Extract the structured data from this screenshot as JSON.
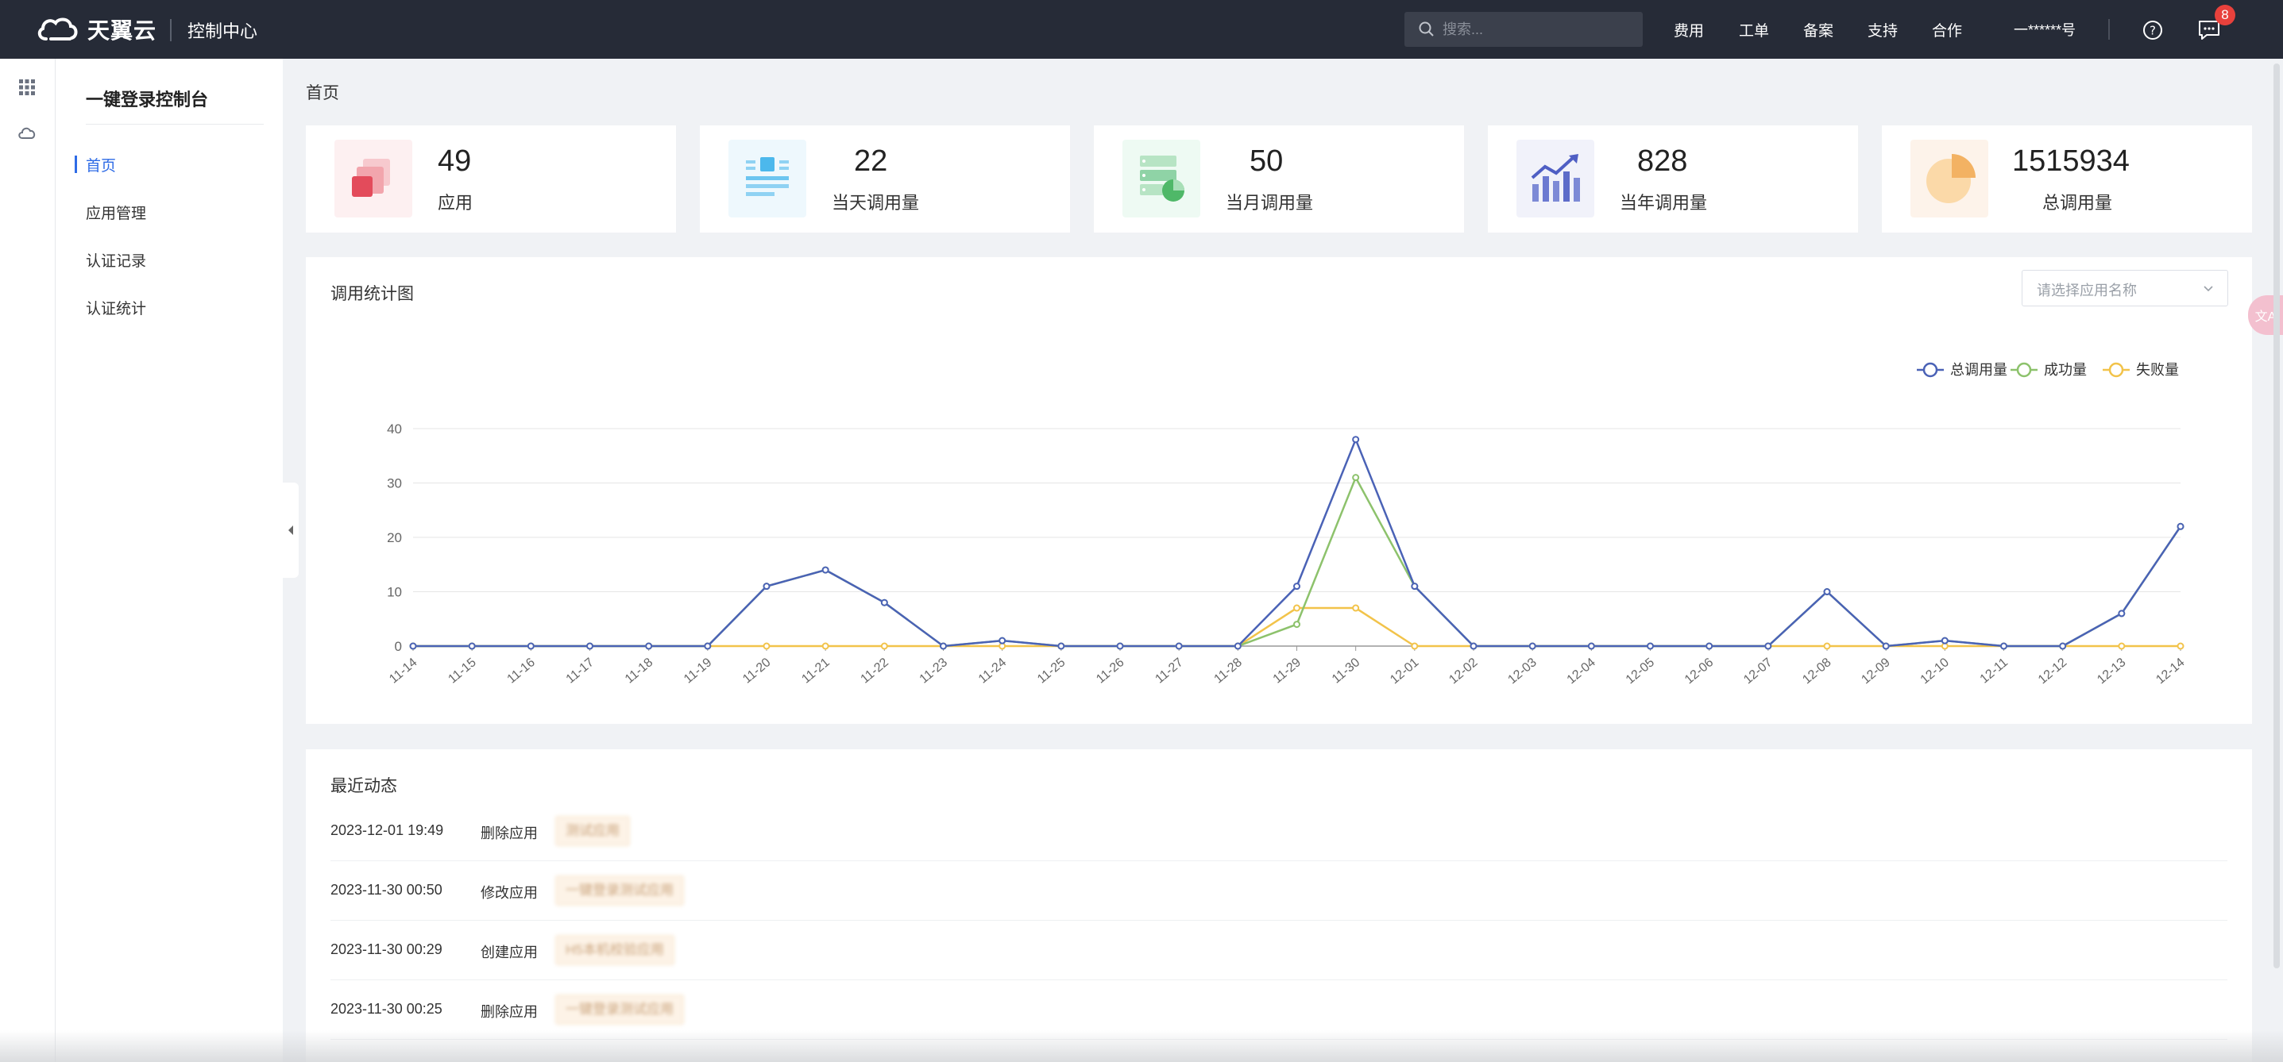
{
  "header": {
    "brand": "天翼云",
    "console_title": "控制中心",
    "search_placeholder": "搜索...",
    "nav": [
      "费用",
      "工单",
      "备案",
      "支持",
      "合作"
    ],
    "account": "一******号",
    "message_count": "8"
  },
  "sidebar": {
    "title": "一键登录控制台",
    "items": [
      {
        "label": "首页",
        "active": true
      },
      {
        "label": "应用管理",
        "active": false
      },
      {
        "label": "认证记录",
        "active": false
      },
      {
        "label": "认证统计",
        "active": false
      }
    ]
  },
  "breadcrumb": "首页",
  "stats": [
    {
      "value": "49",
      "label": "应用",
      "icon": "apps-icon"
    },
    {
      "value": "22",
      "label": "当天调用量",
      "icon": "doc-list-icon"
    },
    {
      "value": "50",
      "label": "当月调用量",
      "icon": "server-pie-icon"
    },
    {
      "value": "828",
      "label": "当年调用量",
      "icon": "bar-trend-icon"
    },
    {
      "value": "1515934",
      "label": "总调用量",
      "icon": "pie-icon"
    }
  ],
  "chart_panel": {
    "title": "调用统计图",
    "select_placeholder": "请选择应用名称"
  },
  "colors": {
    "total": "#4a62b6",
    "success": "#8dc26c",
    "failure": "#f2c34a",
    "accent": "#2e6be6"
  },
  "chart_data": {
    "type": "line",
    "x": [
      "11-14",
      "11-15",
      "11-16",
      "11-17",
      "11-18",
      "11-19",
      "11-20",
      "11-21",
      "11-22",
      "11-23",
      "11-24",
      "11-25",
      "11-26",
      "11-27",
      "11-28",
      "11-29",
      "11-30",
      "12-01",
      "12-02",
      "12-03",
      "12-04",
      "12-05",
      "12-06",
      "12-07",
      "12-08",
      "12-09",
      "12-10",
      "12-11",
      "12-12",
      "12-13",
      "12-14"
    ],
    "ylim": [
      0,
      40
    ],
    "yticks": [
      0,
      10,
      20,
      30,
      40
    ],
    "legend_position": "top-right",
    "grid": true,
    "series": [
      {
        "name": "总调用量",
        "values": [
          0,
          0,
          0,
          0,
          0,
          0,
          11,
          14,
          8,
          0,
          1,
          0,
          0,
          0,
          0,
          11,
          38,
          11,
          0,
          0,
          0,
          0,
          0,
          0,
          10,
          0,
          1,
          0,
          0,
          6,
          22
        ]
      },
      {
        "name": "成功量",
        "values": [
          0,
          0,
          0,
          0,
          0,
          0,
          11,
          14,
          8,
          0,
          1,
          0,
          0,
          0,
          0,
          4,
          31,
          11,
          0,
          0,
          0,
          0,
          0,
          0,
          10,
          0,
          1,
          0,
          0,
          6,
          22
        ]
      },
      {
        "name": "失败量",
        "values": [
          0,
          0,
          0,
          0,
          0,
          0,
          0,
          0,
          0,
          0,
          0,
          0,
          0,
          0,
          0,
          7,
          7,
          0,
          0,
          0,
          0,
          0,
          0,
          0,
          0,
          0,
          0,
          0,
          0,
          0,
          0
        ]
      }
    ]
  },
  "activity": {
    "title": "最近动态",
    "rows": [
      {
        "time": "2023-12-01 19:49",
        "action": "删除应用",
        "target": "测试应用"
      },
      {
        "time": "2023-11-30 00:50",
        "action": "修改应用",
        "target": "一键登录测试应用"
      },
      {
        "time": "2023-11-30 00:29",
        "action": "创建应用",
        "target": "H5本机校验应用"
      },
      {
        "time": "2023-11-30 00:25",
        "action": "删除应用",
        "target": "一键登录测试应用"
      }
    ]
  }
}
